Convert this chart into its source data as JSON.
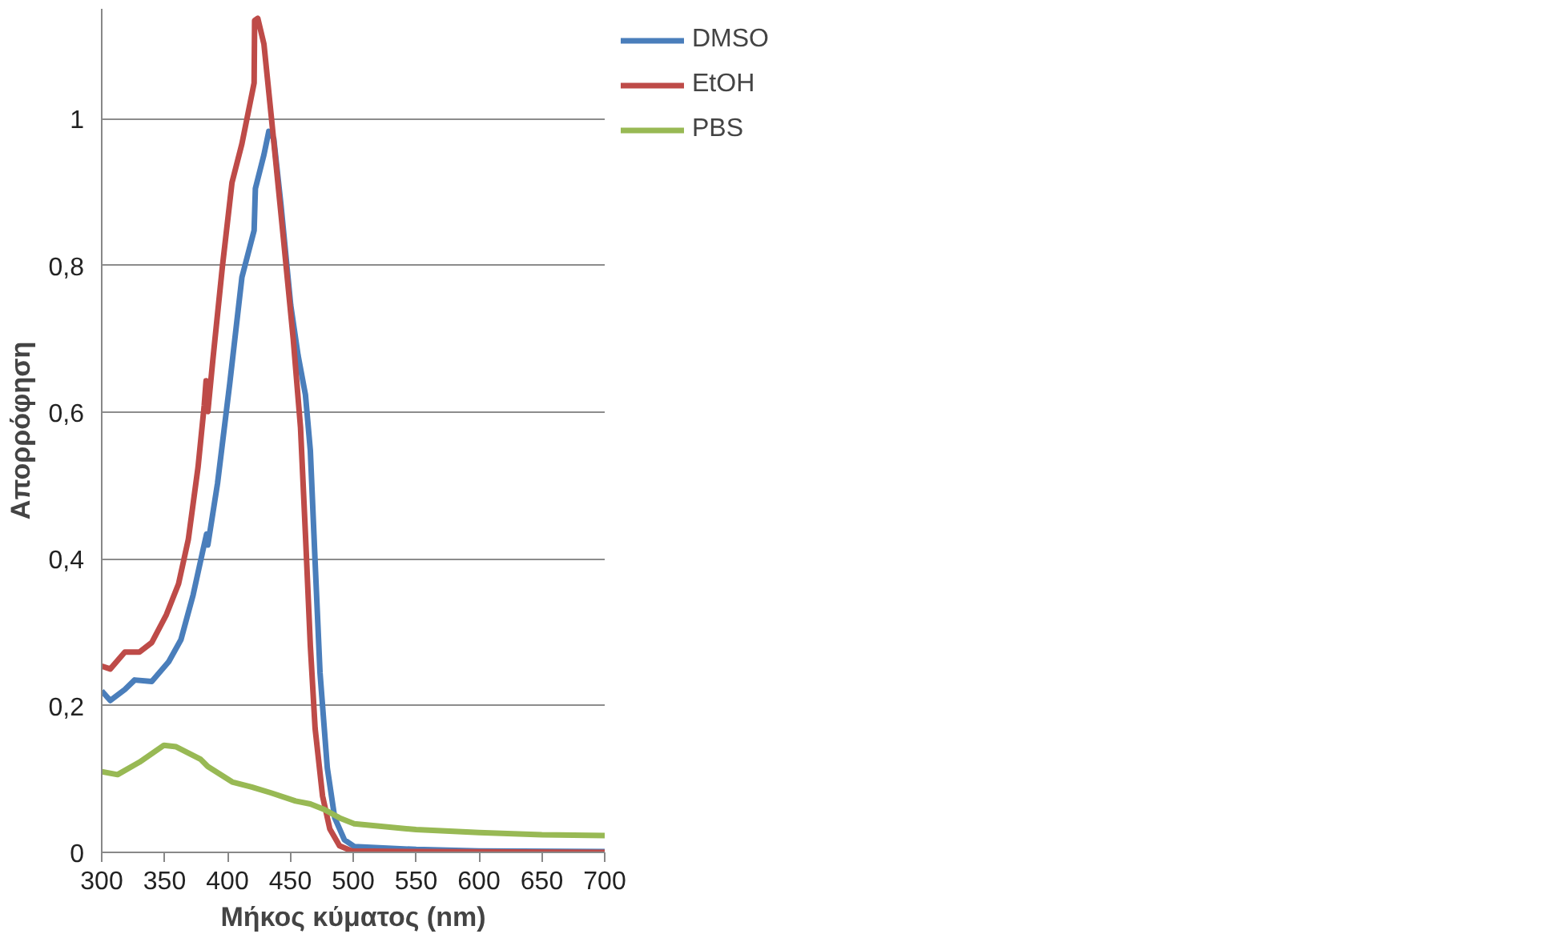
{
  "chart_data": {
    "type": "line",
    "xlabel": "Μήκος κύματος (nm)",
    "ylabel": "Απορρόφηση",
    "xlim": [
      300,
      700
    ],
    "xticks": [
      300,
      350,
      400,
      450,
      500,
      550,
      600,
      650,
      700
    ],
    "ylim": [
      0,
      1.15
    ],
    "yticks": [
      0,
      {
        "value": 0.2,
        "label": "0,2"
      },
      {
        "value": 0.4,
        "label": "0,4"
      },
      {
        "value": 0.6,
        "label": "0,6"
      },
      {
        "value": 0.8,
        "label": "0,8"
      },
      1
    ],
    "grid": "y",
    "legend": "right",
    "line_style": "solid",
    "marker": "none",
    "series": [
      {
        "name": "DMSO",
        "color": "#4a7ebb",
        "x": [
          300,
          306.8,
          318.4,
          326.2,
          339.8,
          353.3,
          363,
          372.7,
          380.5,
          383.4,
          384.4,
          392.1,
          401.8,
          411.5,
          421.2,
          422.2,
          429,
          432.9,
          436.8,
          442.6,
          450.3,
          456.2,
          462,
          465.9,
          469.7,
          473.6,
          479.4,
          485.3,
          493,
          500.8,
          550,
          600,
          700
        ],
        "values": [
          0.22,
          0.207,
          0.222,
          0.235,
          0.233,
          0.26,
          0.29,
          0.351,
          0.412,
          0.434,
          0.419,
          0.503,
          0.639,
          0.784,
          0.848,
          0.905,
          0.951,
          0.983,
          0.973,
          0.882,
          0.746,
          0.677,
          0.624,
          0.548,
          0.396,
          0.245,
          0.115,
          0.047,
          0.017,
          0.008,
          0.004,
          0.002,
          0.001
        ]
      },
      {
        "name": "EtOH",
        "color": "#be4b48",
        "x": [
          300,
          306.8,
          318.4,
          330,
          339.8,
          351.4,
          361.1,
          368.9,
          376.6,
          381.5,
          383,
          384.4,
          388.3,
          396,
          403.6,
          411.5,
          421.2,
          421.6,
          424.1,
          429,
          434.8,
          444.5,
          452.3,
          458.1,
          462,
          465.9,
          469.7,
          475.6,
          481.4,
          489.1,
          498.8,
          550,
          700
        ],
        "values": [
          0.254,
          0.25,
          0.273,
          0.273,
          0.286,
          0.324,
          0.366,
          0.427,
          0.525,
          0.609,
          0.643,
          0.601,
          0.67,
          0.799,
          0.913,
          0.966,
          1.049,
          1.134,
          1.137,
          1.102,
          1.004,
          0.837,
          0.7,
          0.579,
          0.434,
          0.282,
          0.169,
          0.077,
          0.032,
          0.009,
          0.002,
          0.001,
          0.0
        ]
      },
      {
        "name": "PBS",
        "color": "#98b954",
        "x": [
          300,
          312.6,
          330,
          349.5,
          359.2,
          378.6,
          384.4,
          403.8,
          419.3,
          434.8,
          454.2,
          465.9,
          477.5,
          489.1,
          500.8,
          550,
          600,
          650,
          700
        ],
        "values": [
          0.11,
          0.106,
          0.123,
          0.146,
          0.144,
          0.127,
          0.117,
          0.096,
          0.089,
          0.081,
          0.07,
          0.066,
          0.058,
          0.047,
          0.039,
          0.031,
          0.027,
          0.024,
          0.023
        ]
      }
    ]
  }
}
